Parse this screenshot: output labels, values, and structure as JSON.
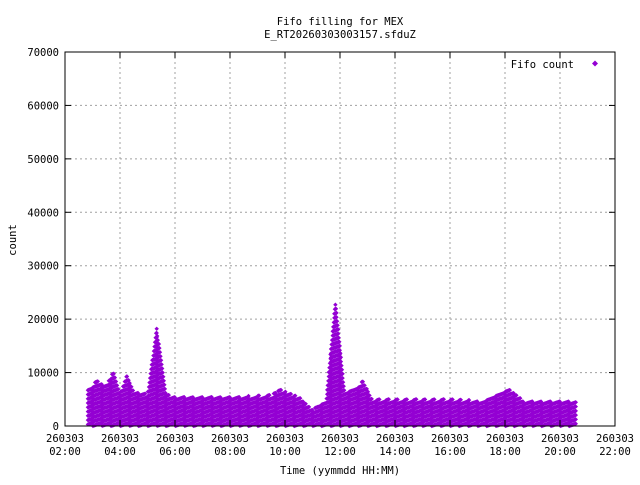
{
  "chart_data": {
    "type": "scatter",
    "title": "Fifo filling for MEX",
    "subtitle": "E_RT20260303003157.sfduZ",
    "xlabel": "Time (yymmdd HH:MM)",
    "ylabel": "count",
    "xlim": [
      "2026-03-03 02:00",
      "2026-03-03 22:00"
    ],
    "ylim": [
      0,
      70000
    ],
    "x_ticks": [
      {
        "date": "260303",
        "time": "02:00"
      },
      {
        "date": "260303",
        "time": "04:00"
      },
      {
        "date": "260303",
        "time": "06:00"
      },
      {
        "date": "260303",
        "time": "08:00"
      },
      {
        "date": "260303",
        "time": "10:00"
      },
      {
        "date": "260303",
        "time": "12:00"
      },
      {
        "date": "260303",
        "time": "14:00"
      },
      {
        "date": "260303",
        "time": "16:00"
      },
      {
        "date": "260303",
        "time": "18:00"
      },
      {
        "date": "260303",
        "time": "20:00"
      },
      {
        "date": "260303",
        "time": "22:00"
      }
    ],
    "y_ticks": [
      "0",
      "10000",
      "20000",
      "30000",
      "40000",
      "50000",
      "60000",
      "70000"
    ],
    "grid": true,
    "legend_position": "top-right",
    "series": [
      {
        "name": "Fifo count",
        "color": "#9400d3",
        "marker": "diamond",
        "envelope": [
          {
            "t": "02:50",
            "max": 7000
          },
          {
            "t": "03:10",
            "max": 8500
          },
          {
            "t": "03:30",
            "max": 7500
          },
          {
            "t": "03:45",
            "max": 10200
          },
          {
            "t": "04:00",
            "max": 6000
          },
          {
            "t": "04:15",
            "max": 9500
          },
          {
            "t": "04:30",
            "max": 6500
          },
          {
            "t": "05:00",
            "max": 6000
          },
          {
            "t": "05:20",
            "max": 18300
          },
          {
            "t": "05:40",
            "max": 6000
          },
          {
            "t": "06:00",
            "max": 5500
          },
          {
            "t": "08:00",
            "max": 5500
          },
          {
            "t": "09:30",
            "max": 5800
          },
          {
            "t": "09:50",
            "max": 6800
          },
          {
            "t": "10:30",
            "max": 5500
          },
          {
            "t": "11:00",
            "max": 3000
          },
          {
            "t": "11:30",
            "max": 5000
          },
          {
            "t": "11:50",
            "max": 23500
          },
          {
            "t": "12:10",
            "max": 6000
          },
          {
            "t": "12:50",
            "max": 8400
          },
          {
            "t": "13:10",
            "max": 5000
          },
          {
            "t": "16:00",
            "max": 5000
          },
          {
            "t": "17:00",
            "max": 4800
          },
          {
            "t": "18:10",
            "max": 6800
          },
          {
            "t": "18:40",
            "max": 4800
          },
          {
            "t": "20:35",
            "max": 4800
          }
        ]
      }
    ]
  }
}
